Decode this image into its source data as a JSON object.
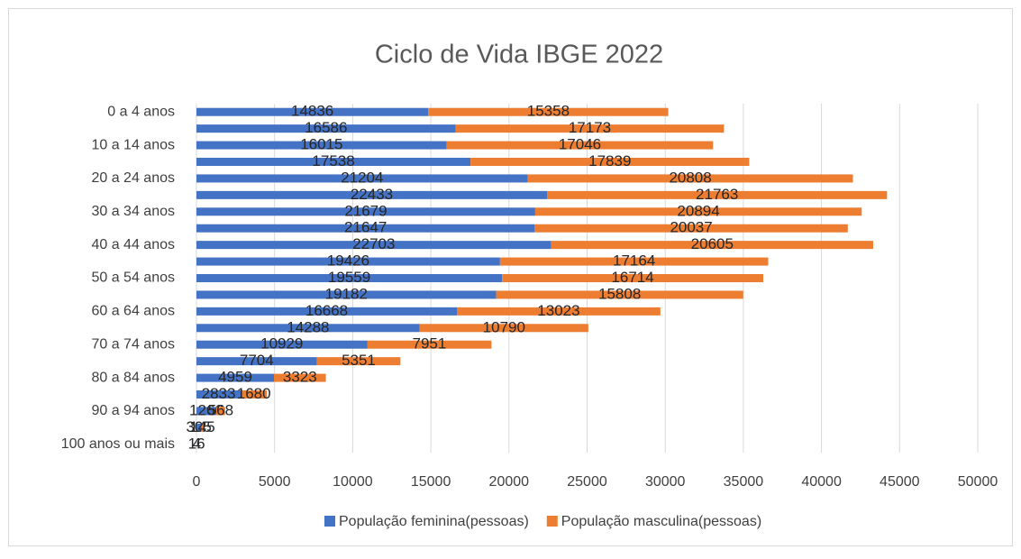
{
  "chart_data": {
    "type": "stacked_barh",
    "title": "Ciclo de Vida IBGE 2022",
    "categories": [
      "0 a 4 anos",
      null,
      "10 a 14 anos",
      null,
      "20 a 24 anos",
      null,
      "30 a 34 anos",
      null,
      "40 a 44 anos",
      null,
      "50 a 54 anos",
      null,
      "60 a 64 anos",
      null,
      "70 a 74 anos",
      null,
      "80 a 84 anos",
      null,
      "90 a 94 anos",
      null,
      "100 anos ou mais"
    ],
    "series": [
      {
        "name": "População feminina(pessoas)",
        "color": "#4472c4",
        "values": [
          14836,
          16586,
          16015,
          17538,
          21204,
          22433,
          21679,
          21647,
          22703,
          19426,
          19559,
          19182,
          16668,
          14288,
          10929,
          7704,
          4959,
          2833,
          1266,
          305,
          16
        ]
      },
      {
        "name": "População masculina(pessoas)",
        "color": "#ed7d31",
        "values": [
          15358,
          17173,
          17046,
          17839,
          20808,
          21763,
          20894,
          20037,
          20605,
          17164,
          16714,
          15808,
          13023,
          10790,
          7951,
          5351,
          3323,
          1680,
          568,
          145,
          4
        ]
      }
    ],
    "xlim": [
      0,
      50000
    ],
    "xticks": [
      0,
      5000,
      10000,
      15000,
      20000,
      25000,
      30000,
      35000,
      40000,
      45000,
      50000
    ],
    "grid": true,
    "legend": "bottom"
  }
}
